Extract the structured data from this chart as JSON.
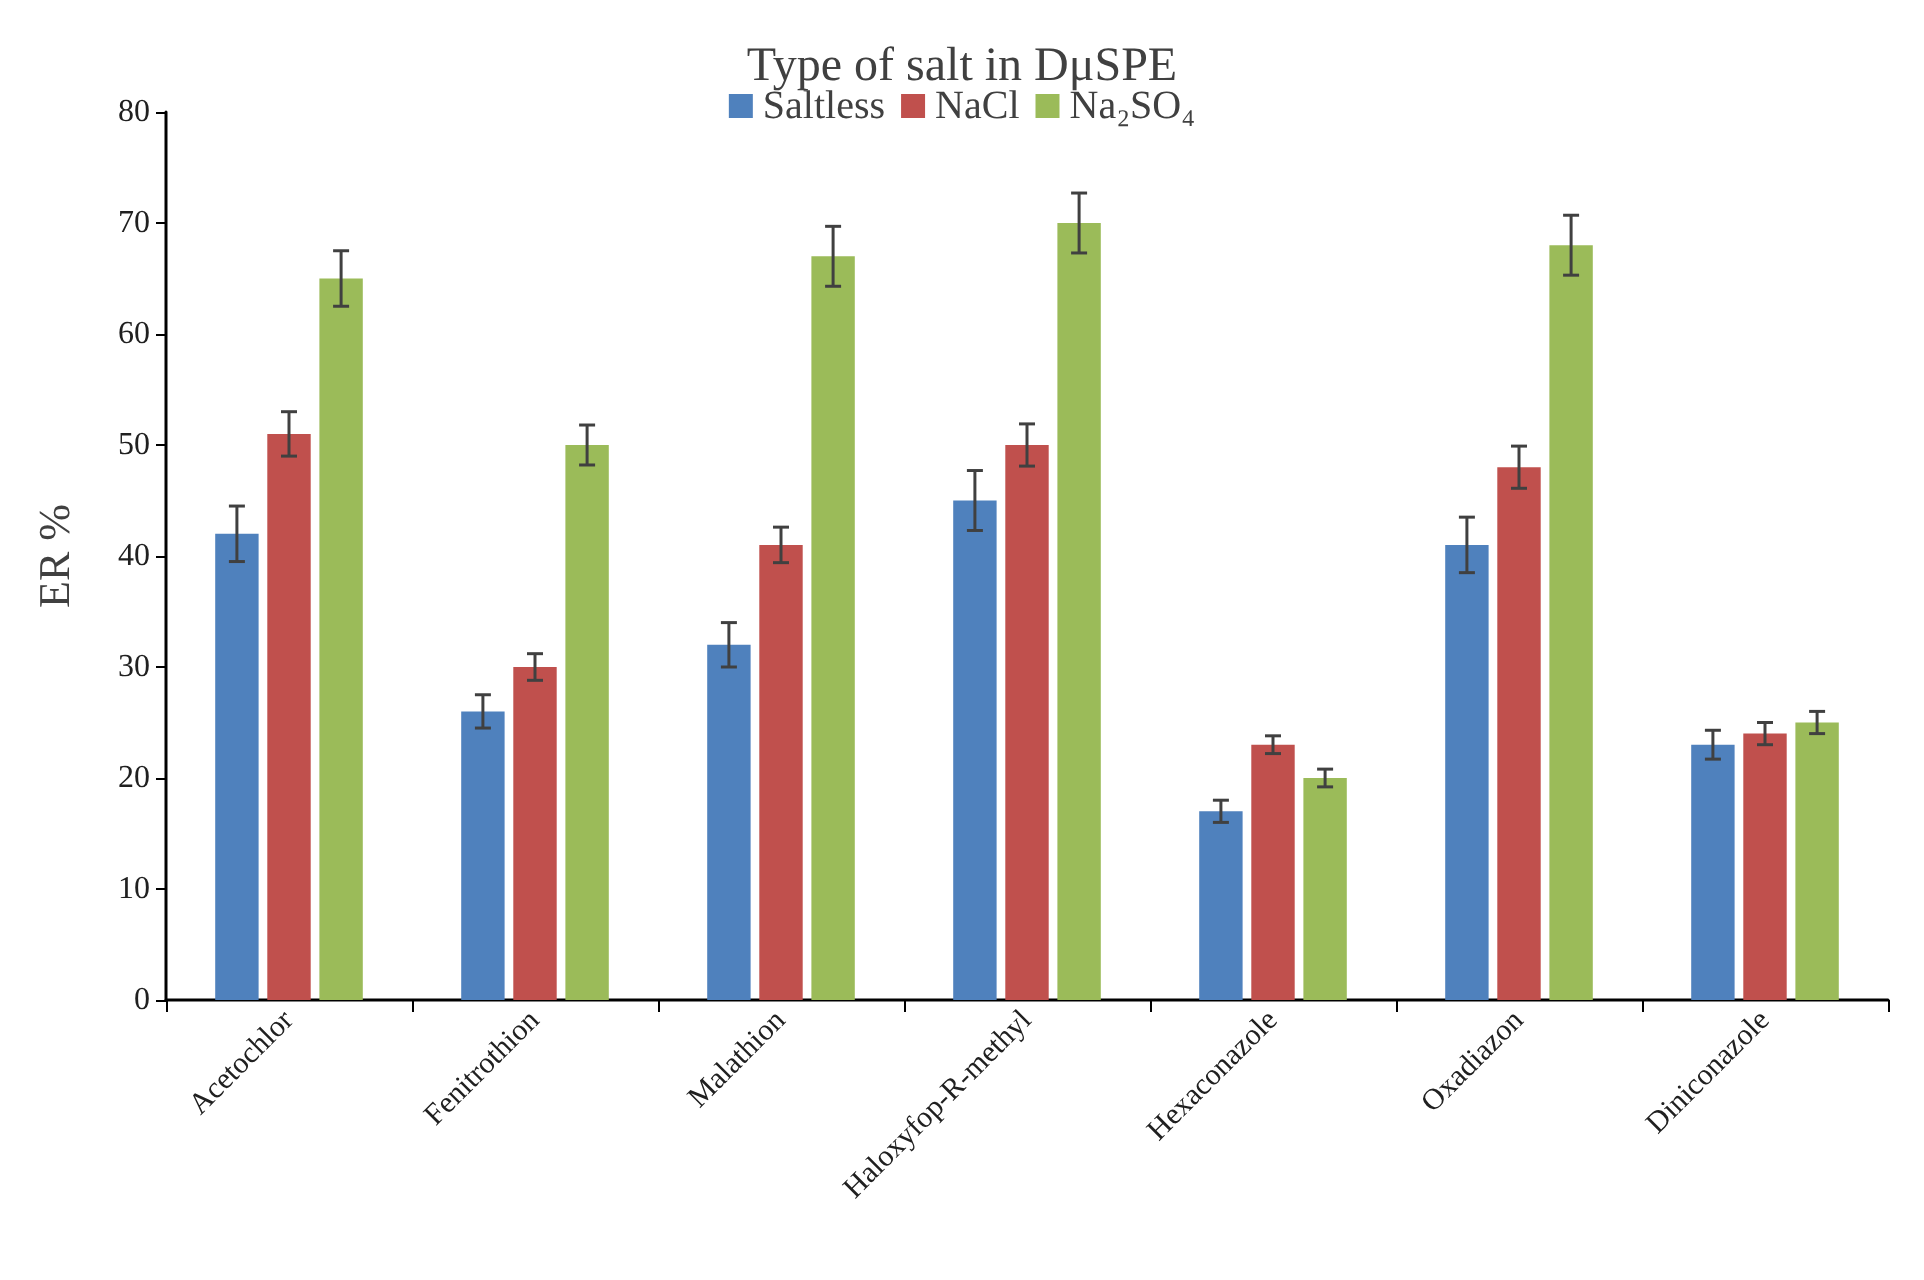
{
  "chart_data": {
    "type": "bar",
    "title": "Type of salt in DμSPE",
    "ylabel": "ER %",
    "categories": [
      "Acetochlor",
      "Fenitrothion",
      "Malathion",
      "Haloxyfop-R-methyl",
      "Hexaconazole",
      "Oxadiazon",
      "Diniconazole"
    ],
    "series": [
      {
        "name": "Saltless",
        "color": "#4f81bd",
        "values": [
          42,
          26,
          32,
          45,
          17,
          41,
          23
        ],
        "errors": [
          2.5,
          1.5,
          2,
          2.7,
          1,
          2.5,
          1.3
        ]
      },
      {
        "name": "NaCl",
        "color": "#c0504d",
        "values": [
          51,
          30,
          41,
          50,
          23,
          48,
          24
        ],
        "errors": [
          2,
          1.2,
          1.6,
          1.9,
          0.8,
          1.9,
          1
        ]
      },
      {
        "name": "Na₂SO₄",
        "color": "#9bbb59",
        "values": [
          65,
          50,
          67,
          70,
          20,
          68,
          25
        ],
        "errors": [
          2.5,
          1.8,
          2.7,
          2.7,
          0.8,
          2.7,
          1
        ]
      }
    ],
    "ylim": [
      0,
      80
    ],
    "yticks": [
      0,
      10,
      20,
      30,
      40,
      50,
      60,
      70,
      80
    ],
    "grid": false,
    "legend": "top"
  }
}
